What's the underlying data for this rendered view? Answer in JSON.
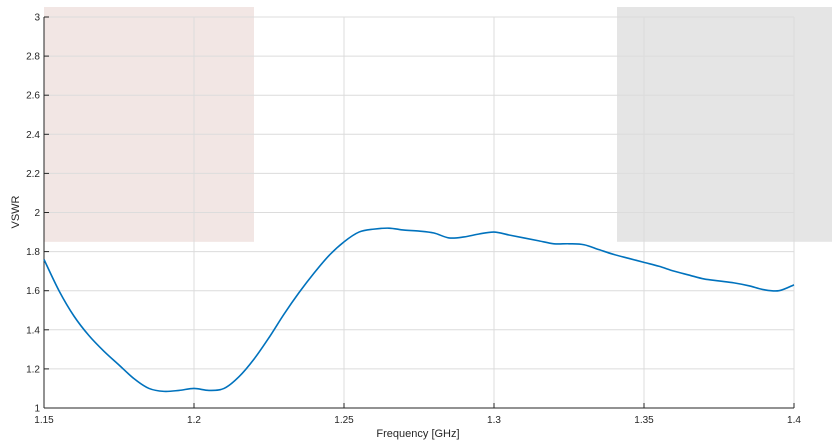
{
  "chart_data": {
    "type": "line",
    "title": "",
    "xlabel": "Frequency [GHz]",
    "ylabel": "VSWR",
    "xlim": [
      1.15,
      1.4
    ],
    "ylim": [
      1,
      3
    ],
    "xticks": [
      1.15,
      1.2,
      1.25,
      1.3,
      1.35,
      1.4
    ],
    "xtick_labels": [
      "1.15",
      "1.2",
      "1.25",
      "1.3",
      "1.35",
      "1.4"
    ],
    "yticks": [
      1,
      1.2,
      1.4,
      1.6,
      1.8,
      2,
      2.2,
      2.4,
      2.6,
      2.8,
      3
    ],
    "ytick_labels": [
      "1",
      "1.2",
      "1.4",
      "1.6",
      "1.8",
      "2",
      "2.2",
      "2.4",
      "2.6",
      "2.8",
      "3"
    ],
    "grid": true,
    "line_color": "#0072bd",
    "shaded_regions": [
      {
        "x": [
          1.15,
          1.22
        ],
        "y": [
          1.85,
          3.0
        ],
        "color": "#f2e6e4"
      },
      {
        "x": [
          1.341,
          1.4
        ],
        "y": [
          1.85,
          3.0
        ],
        "color": "#e5e5e5"
      }
    ],
    "series": [
      {
        "x": [
          1.15,
          1.155,
          1.16,
          1.165,
          1.17,
          1.175,
          1.18,
          1.185,
          1.19,
          1.195,
          1.2,
          1.205,
          1.21,
          1.215,
          1.22,
          1.225,
          1.23,
          1.235,
          1.24,
          1.245,
          1.25,
          1.255,
          1.26,
          1.265,
          1.27,
          1.275,
          1.28,
          1.285,
          1.29,
          1.295,
          1.3,
          1.305,
          1.31,
          1.315,
          1.32,
          1.325,
          1.33,
          1.335,
          1.34,
          1.345,
          1.35,
          1.355,
          1.36,
          1.365,
          1.37,
          1.375,
          1.38,
          1.385,
          1.39,
          1.395,
          1.4
        ],
        "values": [
          1.76,
          1.6,
          1.47,
          1.37,
          1.29,
          1.22,
          1.15,
          1.1,
          1.085,
          1.09,
          1.1,
          1.09,
          1.1,
          1.16,
          1.25,
          1.36,
          1.48,
          1.59,
          1.69,
          1.78,
          1.85,
          1.9,
          1.915,
          1.92,
          1.91,
          1.905,
          1.895,
          1.87,
          1.875,
          1.89,
          1.9,
          1.885,
          1.87,
          1.855,
          1.84,
          1.84,
          1.835,
          1.81,
          1.785,
          1.765,
          1.745,
          1.725,
          1.7,
          1.68,
          1.66,
          1.65,
          1.64,
          1.625,
          1.605,
          1.6,
          1.63
        ]
      }
    ]
  }
}
